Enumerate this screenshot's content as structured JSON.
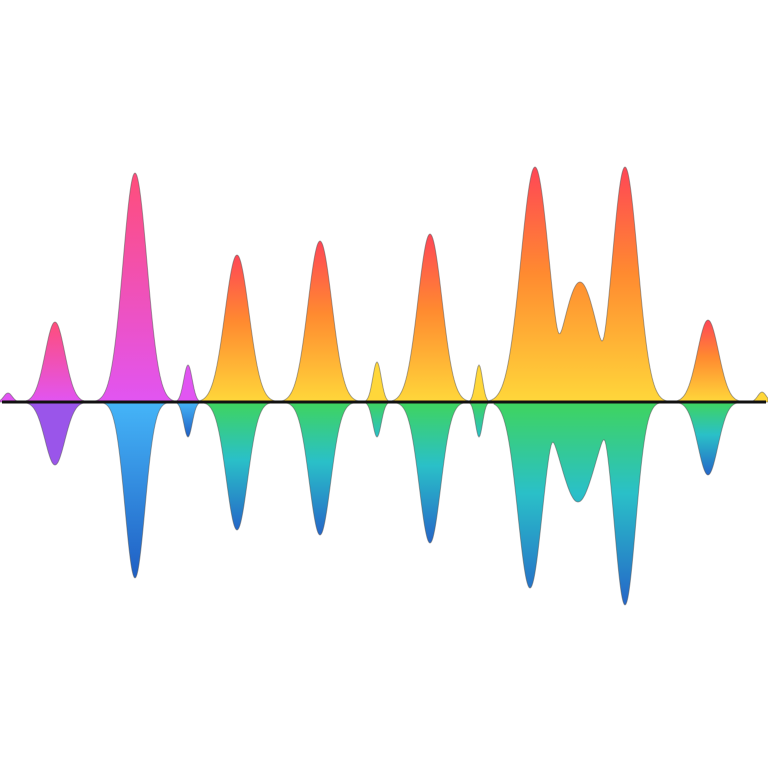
{
  "illustration": {
    "subject": "rainbow-sound-wave",
    "colors": {
      "upper_top_left": "#ff4d7a",
      "upper_bottom_left": "#e155f2",
      "upper_top": "#ff4656",
      "upper_mid": "#ff8a30",
      "upper_bottom": "#ffd73a",
      "lower_left": "#9a55ea",
      "lower_blue_top": "#45b5f8",
      "lower_blue_bottom": "#1f5fc4",
      "lower_top": "#3fd45e",
      "lower_mid": "#2ac0c8",
      "lower_bottom": "#2566c8",
      "baseline": "#111111",
      "outline": "#555555"
    }
  }
}
